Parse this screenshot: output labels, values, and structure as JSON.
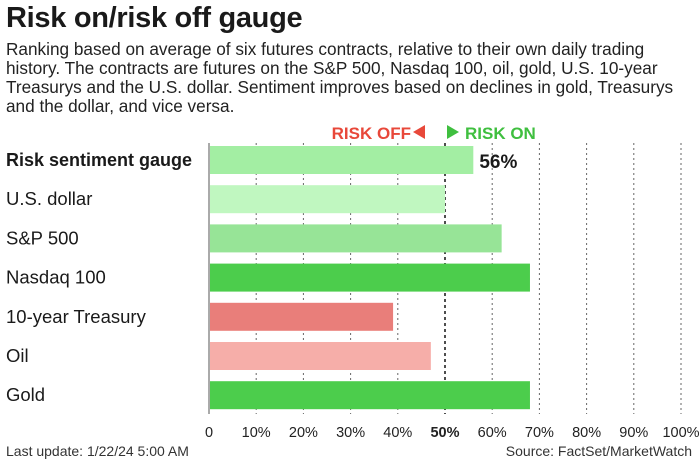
{
  "title": "Risk on/risk off gauge",
  "subtitle": "Ranking based on average of six futures contracts, relative to their own daily trading history. The contracts are futures on the S&P 500, Nasdaq 100, oil, gold, U.S. 10-year Treasurys and the U.S. dollar. Sentiment improves based on declines in gold, Treasurys and the dollar, and vice versa.",
  "legend": {
    "risk_off": "RISK OFF",
    "risk_on": "RISK ON",
    "risk_off_color": "#e8483a",
    "risk_on_color": "#3fbf3f"
  },
  "footer": {
    "last_update": "Last update: 1/22/24 5:00 AM",
    "source": "Source: FactSet/MarketWatch"
  },
  "chart_data": {
    "type": "bar",
    "orientation": "horizontal",
    "categories": [
      "Risk sentiment gauge",
      "U.S. dollar",
      "S&P 500",
      "Nasdaq 100",
      "10-year Treasury",
      "Oil",
      "Gold"
    ],
    "values": [
      56,
      50,
      62,
      68,
      39,
      47,
      68
    ],
    "value_labels": [
      "56%",
      "",
      "",
      "",
      "",
      "",
      ""
    ],
    "colors": [
      "#a3eea3",
      "#c0f7c0",
      "#97e497",
      "#4ccd4c",
      "#e97e7a",
      "#f6aea9",
      "#4ccd4c"
    ],
    "bold_categories": [
      "Risk sentiment gauge"
    ],
    "xlim": [
      0,
      100
    ],
    "x_ticks": [
      "0",
      "10%",
      "20%",
      "30%",
      "40%",
      "50%",
      "60%",
      "70%",
      "80%",
      "90%",
      "100%"
    ],
    "grid": "vertical dashed",
    "midline": 50
  }
}
